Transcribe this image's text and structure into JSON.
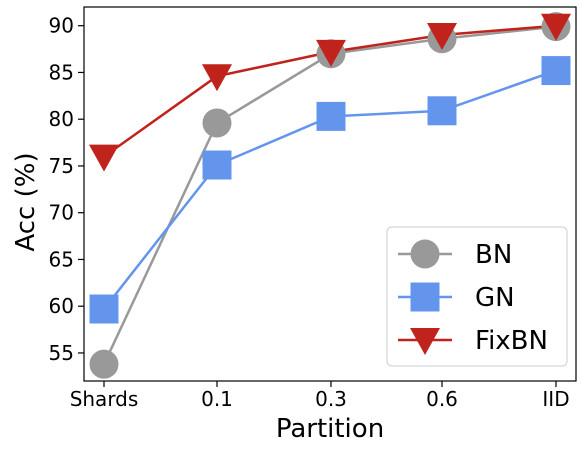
{
  "chart_data": {
    "type": "line",
    "title": "",
    "xlabel": "Partition",
    "ylabel": "Acc (%)",
    "categories": [
      "Shards",
      "0.1",
      "0.3",
      "0.6",
      "IID"
    ],
    "ylim": [
      52,
      92
    ],
    "yticks": [
      55,
      60,
      65,
      70,
      75,
      80,
      85,
      90
    ],
    "grid": false,
    "legend_position": "lower-right",
    "series": [
      {
        "name": "BN",
        "values": [
          53.8,
          79.6,
          87.0,
          88.6,
          89.9
        ],
        "color": "#999999",
        "marker": "circle"
      },
      {
        "name": "GN",
        "values": [
          59.7,
          75.1,
          80.3,
          80.9,
          85.2
        ],
        "color": "#6495ED",
        "marker": "square"
      },
      {
        "name": "FixBN",
        "values": [
          76.0,
          84.6,
          87.2,
          89.0,
          90.0
        ],
        "color": "#C0221C",
        "marker": "triangle-down"
      }
    ]
  }
}
